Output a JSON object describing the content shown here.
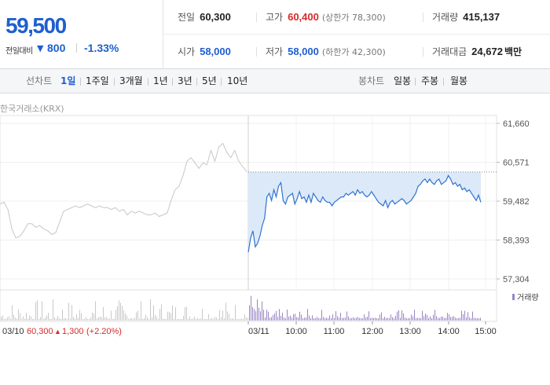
{
  "price": {
    "current": "59,500",
    "change_label": "전일대비",
    "change_arrow": "▼",
    "change_value": "800",
    "change_pct": "-1.33%"
  },
  "stats": {
    "prev_close": {
      "label": "전일",
      "value": "60,300"
    },
    "high": {
      "label": "고가",
      "value": "60,400",
      "sub": "(상한가 78,300)"
    },
    "volume": {
      "label": "거래량",
      "value": "415,137"
    },
    "open": {
      "label": "시가",
      "value": "58,000"
    },
    "low": {
      "label": "저가",
      "value": "58,000",
      "sub": "(하한가 42,300)"
    },
    "trade_amount": {
      "label": "거래대금",
      "value": "24,672",
      "unit": "백만"
    }
  },
  "tabs": {
    "line_label": "선차트",
    "line_tabs": [
      "1일",
      "1주일",
      "3개월",
      "1년",
      "3년",
      "5년",
      "10년"
    ],
    "line_active": 0,
    "candle_label": "봉차트",
    "candle_tabs": [
      "일봉",
      "주봉",
      "월봉"
    ]
  },
  "chart": {
    "exchange": "한국거래소(KRX)",
    "volume_legend": "거래량",
    "prev_day_date": "03/10",
    "prev_day_close": "60,300",
    "prev_day_arrow": "▲",
    "prev_day_change": "1,300",
    "prev_day_pct": "(+2.20%)"
  },
  "colors": {
    "up": "#d62b2b",
    "down": "#1e5fd0",
    "prev_line": "#c7c7c7",
    "today_line": "#2f74d0",
    "fill": "#dce9f8",
    "prev_volume": "#c9c9c9",
    "today_volume": "#9a86c4"
  },
  "chart_data": {
    "type": "line",
    "ylabel": "",
    "xlabel": "",
    "y_ticks": [
      "61,660",
      "60,571",
      "59,482",
      "58,393",
      "57,304"
    ],
    "ylim": [
      57304,
      61660
    ],
    "x_ticks": [
      "03/11",
      "10:00",
      "11:00",
      "12:00",
      "13:00",
      "14:00",
      "15:00"
    ],
    "reference_price": 60300,
    "series": [
      {
        "date": "03/10",
        "x": [
          0,
          5,
          10,
          15,
          20,
          25,
          30,
          35,
          40,
          45,
          50,
          55,
          60,
          65,
          70,
          75,
          80,
          85,
          90,
          95,
          100,
          105,
          110,
          115,
          120,
          125,
          130,
          135,
          140,
          145,
          150,
          155,
          160,
          165,
          170,
          175,
          180,
          185,
          190,
          195,
          200,
          205,
          210,
          215,
          220,
          225,
          230,
          235,
          240,
          245,
          250,
          255,
          260,
          265,
          270,
          275,
          280,
          285,
          290,
          295,
          300,
          305,
          310
        ],
        "values": [
          59400,
          59450,
          59250,
          58700,
          58450,
          58500,
          58650,
          58850,
          58850,
          58750,
          58800,
          58700,
          58650,
          58550,
          58600,
          58900,
          59200,
          59250,
          59300,
          59350,
          59300,
          59350,
          59400,
          59350,
          59300,
          59350,
          59300,
          59300,
          59250,
          59300,
          59200,
          59250,
          59100,
          59200,
          59150,
          59200,
          59150,
          59100,
          59100,
          59150,
          59050,
          59100,
          59150,
          59500,
          59800,
          59900,
          60200,
          60600,
          60700,
          60550,
          60400,
          60550,
          60500,
          60900,
          60600,
          61000,
          61100,
          60850,
          60700,
          60900,
          60600,
          60450,
          60300
        ]
      },
      {
        "date": "03/11",
        "x": [
          0,
          3,
          6,
          9,
          12,
          15,
          18,
          21,
          24,
          27,
          30,
          33,
          36,
          39,
          42,
          45,
          48,
          51,
          54,
          57,
          60,
          63,
          66,
          69,
          72,
          75,
          78,
          81,
          84,
          87,
          90,
          93,
          96,
          99,
          102,
          105,
          108,
          111,
          114,
          117,
          120,
          123,
          126,
          129,
          132,
          135,
          138,
          141,
          144,
          147,
          150,
          153,
          156,
          159,
          162,
          165,
          168,
          171,
          174,
          177,
          180,
          183,
          186,
          189,
          192,
          195,
          198,
          201,
          204,
          207,
          210,
          213,
          216,
          219,
          222,
          225,
          228,
          231,
          234,
          237,
          240,
          243,
          246,
          249,
          252,
          255,
          258,
          261,
          264,
          267,
          270,
          273,
          276,
          279,
          282,
          285,
          288,
          291,
          294,
          297,
          300
        ],
        "values": [
          58050,
          58450,
          58650,
          58200,
          58300,
          58500,
          58800,
          59000,
          59600,
          59700,
          59500,
          59800,
          59600,
          59900,
          60000,
          59500,
          59400,
          59600,
          59650,
          59700,
          59400,
          59550,
          59750,
          59550,
          59600,
          59450,
          59650,
          59450,
          59700,
          59600,
          59500,
          59450,
          59600,
          59500,
          59450,
          59450,
          59350,
          59450,
          59500,
          59550,
          59600,
          59600,
          59700,
          59650,
          59700,
          59750,
          59650,
          59800,
          59700,
          59750,
          59650,
          59600,
          59650,
          59750,
          59650,
          59550,
          59450,
          59400,
          59350,
          59500,
          59300,
          59450,
          59500,
          59400,
          59450,
          59500,
          59550,
          59500,
          59400,
          59450,
          59500,
          59600,
          59700,
          59900,
          59950,
          60050,
          60100,
          60000,
          60100,
          60000,
          59950,
          60050,
          60100,
          59950,
          60000,
          60050,
          60200,
          60100,
          59950,
          60000,
          59900,
          59950,
          59800,
          59850,
          59750,
          59800,
          59700,
          59600,
          59500,
          59650,
          59450
        ]
      }
    ]
  }
}
